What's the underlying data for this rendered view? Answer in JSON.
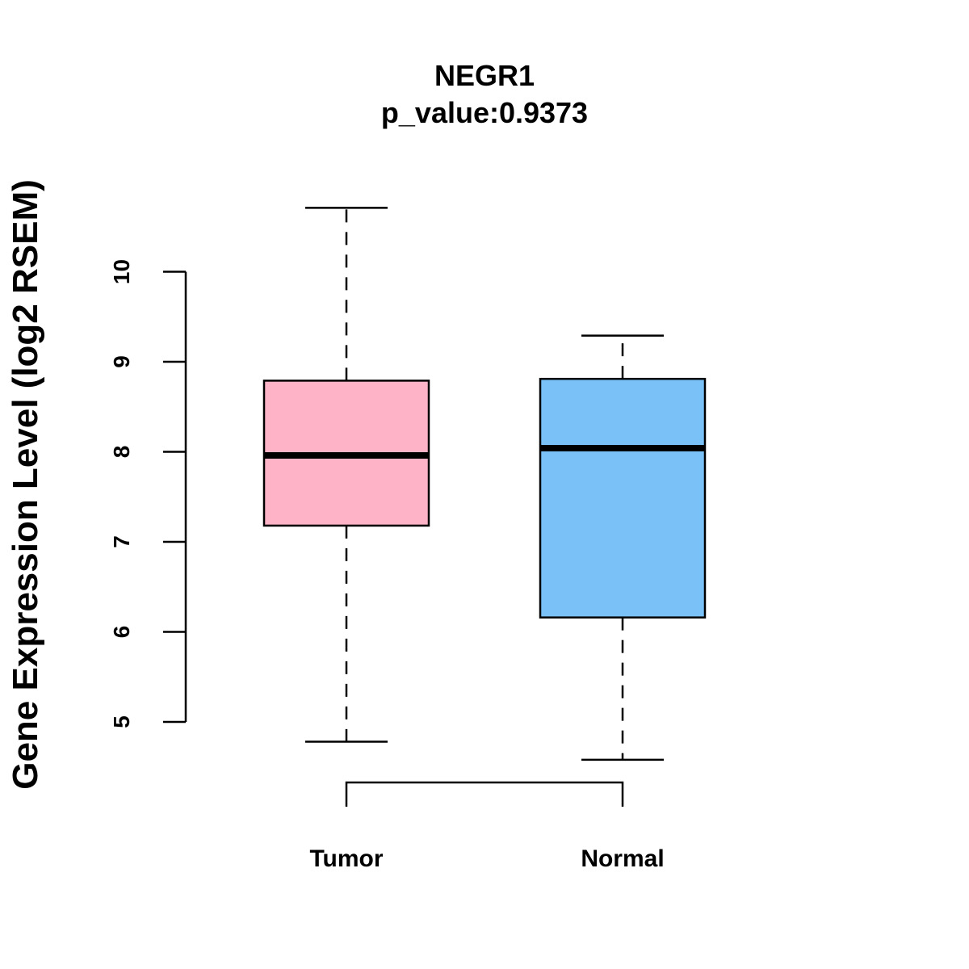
{
  "chart_data": {
    "type": "boxplot",
    "title": "NEGR1",
    "subtitle": "p_value:0.9373",
    "xlabel": "",
    "ylabel": "Gene Expression Level (log2 RSEM)",
    "ylim": [
      4.3,
      10.9
    ],
    "yticks": [
      5,
      6,
      7,
      8,
      9,
      10
    ],
    "grid": false,
    "categories": [
      "Tumor",
      "Normal"
    ],
    "boxes": [
      {
        "name": "Tumor",
        "min": 4.78,
        "q1": 7.18,
        "median": 7.96,
        "q3": 8.79,
        "max": 10.71,
        "color": "#FFB3C6"
      },
      {
        "name": "Normal",
        "min": 4.58,
        "q1": 6.16,
        "median": 8.04,
        "q3": 8.81,
        "max": 9.29,
        "color": "#7AC1F8"
      }
    ],
    "comparison_bracket": [
      "Tumor",
      "Normal"
    ],
    "line_color": "#000000"
  }
}
